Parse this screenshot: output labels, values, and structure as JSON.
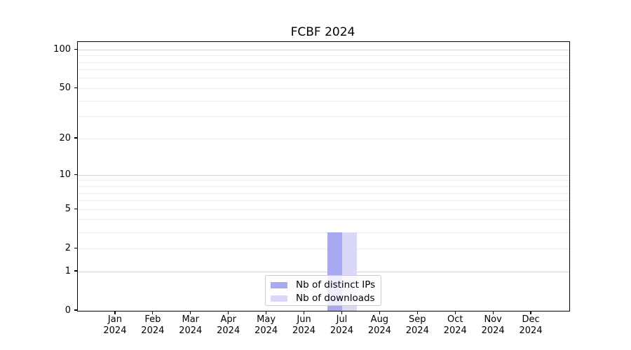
{
  "chart_data": {
    "type": "bar",
    "title": "FCBF 2024",
    "categories": [
      "Jan",
      "Feb",
      "Mar",
      "Apr",
      "May",
      "Jun",
      "Jul",
      "Aug",
      "Sep",
      "Oct",
      "Nov",
      "Dec"
    ],
    "category_sublabels": [
      "2024",
      "2024",
      "2024",
      "2024",
      "2024",
      "2024",
      "2024",
      "2024",
      "2024",
      "2024",
      "2024",
      "2024"
    ],
    "series": [
      {
        "name": "Nb of distinct IPs",
        "color": "#a9a9f3",
        "values": [
          0,
          0,
          0,
          0,
          0,
          0,
          3,
          0,
          0,
          0,
          0,
          0
        ]
      },
      {
        "name": "Nb of downloads",
        "color": "#d9d9f7",
        "values": [
          0,
          0,
          0,
          0,
          0,
          0,
          3,
          0,
          0,
          0,
          0,
          0
        ]
      }
    ],
    "xlabel": "",
    "ylabel": "",
    "yscale": "log1p",
    "ylim": [
      0,
      115
    ],
    "yticks": [
      0,
      1,
      2,
      5,
      10,
      20,
      50,
      100
    ],
    "major_gridlines": [
      1,
      10,
      100
    ],
    "minor_gridlines": [
      2,
      3,
      4,
      5,
      6,
      7,
      8,
      9,
      20,
      30,
      40,
      50,
      60,
      70,
      80,
      90
    ],
    "grid": "on",
    "legend_position": "lower center"
  },
  "colors": {
    "distinct_ips_bar": "#a9a9f3",
    "downloads_bar": "#d9d9f7",
    "major_grid": "#d6d6d6",
    "minor_grid": "#ececec",
    "spine": "#000000",
    "legend_border": "#cccccc"
  }
}
